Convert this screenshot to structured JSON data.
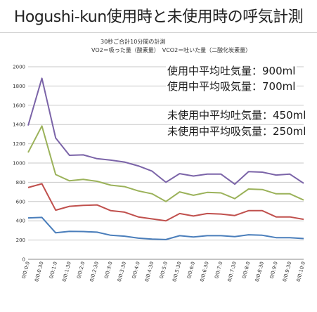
{
  "title": "Hogushi-kun使用時と未使用時の呼気計測",
  "subtitle_line1": "30秒ご合計10分間の計測",
  "subtitle_line2": "VO2＝吸った量（酸素量）　VCO2＝吐いた量（二酸化炭素量）",
  "annotations": {
    "used_exhale": "使用中平均吐気量：900ml",
    "used_inhale": "使用中平均吸気量：700ml",
    "unused_exhale": "未使用中平均吐気量：450ml",
    "unused_inhale": "未使用中平均吸気量：250ml"
  },
  "chart_data": {
    "type": "line",
    "x": [
      "0/0:0:0",
      "0/0:0:30",
      "0/0:1:0",
      "0/0:1:30",
      "0/0:2:0",
      "0/0:2:30",
      "0/0:3:0",
      "0/0:3:30",
      "0/0:4:0",
      "0/0:4:30",
      "0/0:5:0",
      "0/0:5:30",
      "0/0:6:0",
      "0/0:6:30",
      "0/0:7:0",
      "0/0:7:30",
      "0/0:8:0",
      "0/0:8:30",
      "0/0:9:0",
      "0/0:9:30",
      "0/0:10:0"
    ],
    "ylim": [
      0,
      2000
    ],
    "yticks": [
      0,
      200,
      400,
      600,
      800,
      1000,
      1200,
      1400,
      1600,
      1800,
      2000
    ],
    "grid": true,
    "series": [
      {
        "color": "#7b64a8",
        "values": [
          1390,
          1880,
          1260,
          1080,
          1085,
          1045,
          1030,
          1010,
          970,
          915,
          800,
          890,
          865,
          885,
          885,
          780,
          910,
          905,
          875,
          885,
          790
        ]
      },
      {
        "color": "#9bb25a",
        "values": [
          1110,
          1385,
          880,
          815,
          830,
          810,
          770,
          755,
          710,
          680,
          600,
          700,
          665,
          695,
          690,
          630,
          730,
          725,
          680,
          680,
          615
        ]
      },
      {
        "color": "#c0504d",
        "values": [
          745,
          785,
          510,
          550,
          560,
          565,
          505,
          490,
          440,
          420,
          400,
          475,
          450,
          475,
          470,
          455,
          505,
          505,
          440,
          440,
          415
        ]
      },
      {
        "color": "#4a7ebb",
        "values": [
          430,
          435,
          275,
          290,
          288,
          282,
          250,
          240,
          220,
          210,
          205,
          245,
          232,
          245,
          245,
          235,
          255,
          250,
          225,
          225,
          215
        ]
      }
    ]
  }
}
